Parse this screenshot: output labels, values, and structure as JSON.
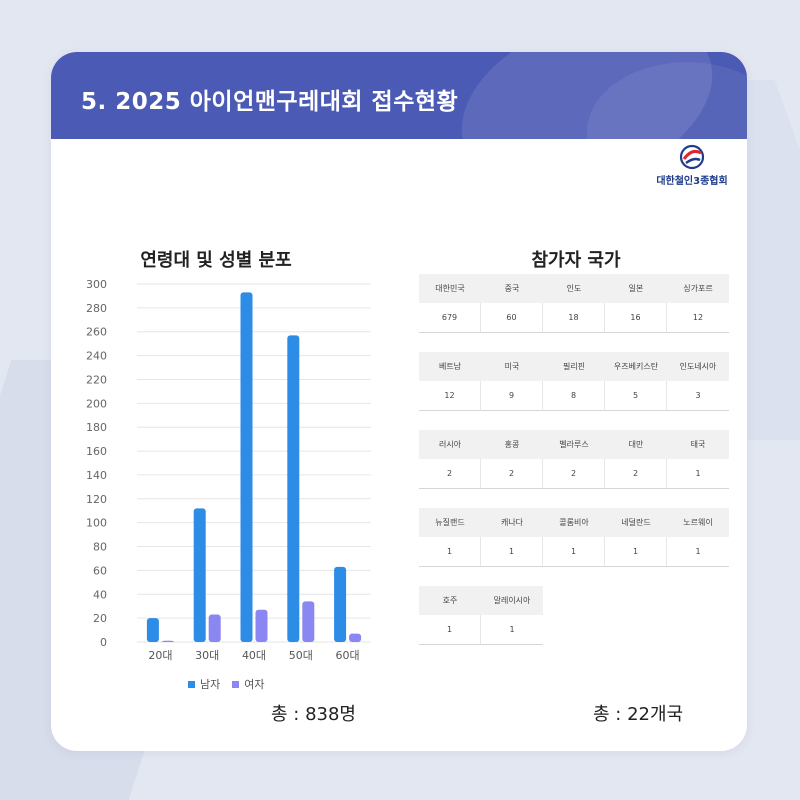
{
  "header": {
    "title": "5. 2025 아이언맨구레대회 접수현황"
  },
  "logo": {
    "text": "대한철인3종협회",
    "icon": "triathlon-logo-icon"
  },
  "colors": {
    "header": "#4b5ab4",
    "male": "#2d8ce6",
    "female": "#8a86f2"
  },
  "chart_data": {
    "type": "bar",
    "title": "연령대 및 성별 분포",
    "categories": [
      "20대",
      "30대",
      "40대",
      "50대",
      "60대"
    ],
    "series": [
      {
        "name": "남자",
        "values": [
          20,
          112,
          293,
          257,
          63
        ]
      },
      {
        "name": "여자",
        "values": [
          1,
          23,
          27,
          34,
          7
        ]
      }
    ],
    "ylim": [
      0,
      300
    ],
    "yticks": [
      0,
      20,
      40,
      60,
      80,
      100,
      120,
      140,
      160,
      180,
      200,
      220,
      240,
      260,
      280,
      300
    ],
    "grid": true,
    "legend": "bottom"
  },
  "totals": {
    "participants": "총 : 838명",
    "countries": "총 : 22개국"
  },
  "countries": {
    "title": "참가자 국가",
    "groups": [
      [
        {
          "name": "대한민국",
          "count": "679"
        },
        {
          "name": "중국",
          "count": "60"
        },
        {
          "name": "인도",
          "count": "18"
        },
        {
          "name": "일본",
          "count": "16"
        },
        {
          "name": "싱가포르",
          "count": "12"
        }
      ],
      [
        {
          "name": "베트남",
          "count": "12"
        },
        {
          "name": "미국",
          "count": "9"
        },
        {
          "name": "필리핀",
          "count": "8"
        },
        {
          "name": "우즈베키스탄",
          "count": "5"
        },
        {
          "name": "인도네시아",
          "count": "3"
        }
      ],
      [
        {
          "name": "러시아",
          "count": "2"
        },
        {
          "name": "홍콩",
          "count": "2"
        },
        {
          "name": "벨라루스",
          "count": "2"
        },
        {
          "name": "대만",
          "count": "2"
        },
        {
          "name": "태국",
          "count": "1"
        }
      ],
      [
        {
          "name": "뉴질랜드",
          "count": "1"
        },
        {
          "name": "캐나다",
          "count": "1"
        },
        {
          "name": "콜롬비아",
          "count": "1"
        },
        {
          "name": "네덜란드",
          "count": "1"
        },
        {
          "name": "노르웨이",
          "count": "1"
        }
      ],
      [
        {
          "name": "호주",
          "count": "1"
        },
        {
          "name": "말레이시아",
          "count": "1"
        }
      ]
    ]
  }
}
